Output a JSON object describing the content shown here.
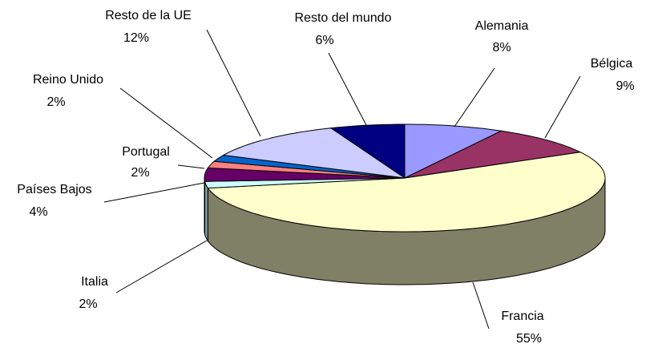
{
  "chart_data": {
    "type": "pie3d",
    "categories": [
      "Alemania",
      "Bélgica",
      "Francia",
      "Italia",
      "Países Bajos",
      "Portugal",
      "Reino Unido",
      "Resto de la UE",
      "Resto del mundo"
    ],
    "values": [
      8,
      9,
      55,
      2,
      4,
      2,
      2,
      12,
      6
    ],
    "value_labels": [
      "8%",
      "9%",
      "55%",
      "2%",
      "4%",
      "2%",
      "2%",
      "12%",
      "6%"
    ],
    "colors": [
      "#9999ff",
      "#993366",
      "#ffffcc",
      "#ccffff",
      "#660066",
      "#ff8080",
      "#0066cc",
      "#ccccff",
      "#000080"
    ]
  }
}
